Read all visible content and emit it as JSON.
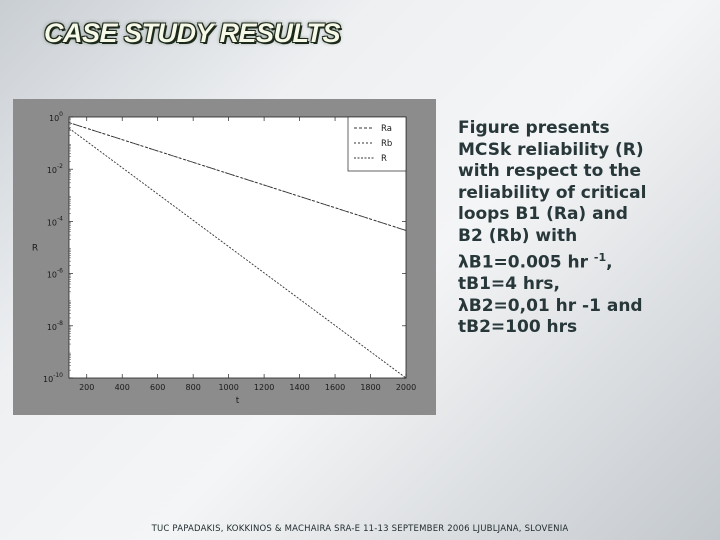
{
  "slide": {
    "title": "CASE STUDY RESULTS",
    "caption_lines": [
      "Figure presents",
      "MCSk reliability (R)",
      "with respect to the",
      "reliability of critical",
      "loops  B1 (Ra) and",
      "B2 (Rb) with",
      "λB1=0.005 hr",
      "tB1=4 hrs,",
      "λB2=0,01 hr -1 and",
      "tB2=100 hrs"
    ],
    "caption_superscript": "-1",
    "caption_after_superscript": ",",
    "footer": "TUC PAPADAKIS, KOKKINOS & MACHAIRA SRA-E 11-13 SEPTEMBER 2006 LJUBLJANA, SLOVENIA"
  },
  "chart_data": {
    "type": "line",
    "xlabel": "t",
    "ylabel": "R",
    "x_ticks": [
      200,
      400,
      600,
      800,
      1000,
      1200,
      1400,
      1600,
      1800,
      2000
    ],
    "y_ticks": [
      {
        "base": "10",
        "exp": "0"
      },
      {
        "base": "10",
        "exp": "-2"
      },
      {
        "base": "10",
        "exp": "-4"
      },
      {
        "base": "10",
        "exp": "-6"
      },
      {
        "base": "10",
        "exp": "-8"
      },
      {
        "base": "10",
        "exp": "-10"
      }
    ],
    "xlim": [
      100,
      2000
    ],
    "ylim_exponent": [
      -10,
      0
    ],
    "y_scale": "log",
    "legend": [
      "Ra",
      "Rb",
      "R"
    ],
    "legend_position": "top-right",
    "series": [
      {
        "name": "Ra",
        "x": [
          100,
          2000
        ],
        "y": [
          0.61,
          4.5e-05
        ]
      },
      {
        "name": "Rb",
        "x": [
          100,
          2000
        ],
        "y": [
          0.61,
          4.5e-05
        ]
      },
      {
        "name": "R",
        "x": [
          100,
          2000
        ],
        "y": [
          0.37,
          1e-10
        ]
      }
    ],
    "colors": {
      "frame": "#8c8c8c",
      "plot_bg": "#ffffff",
      "line": "#333333"
    }
  }
}
